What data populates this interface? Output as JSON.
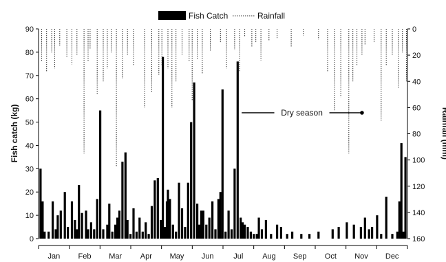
{
  "chart_data": {
    "type": "bar",
    "title": "",
    "xlabel": "",
    "ylabel": "Fish catch (kg)",
    "y2label": "Rainfall (mm)",
    "ylim": [
      0,
      90
    ],
    "y2lim": [
      160,
      0
    ],
    "y2_inverted": true,
    "legend": {
      "placement": "top-center",
      "entries": [
        "Fish Catch",
        "Rainfall"
      ]
    },
    "grid": false,
    "yticks": [
      0,
      10,
      20,
      30,
      40,
      50,
      60,
      70,
      80,
      90
    ],
    "y2ticks": [
      0,
      20,
      40,
      60,
      80,
      100,
      120,
      140,
      160
    ],
    "categories": [
      "Jan",
      "Feb",
      "Mar",
      "Apr",
      "May",
      "Jun",
      "Jul",
      "Aug",
      "Sep",
      "Oct",
      "Nov",
      "Dec"
    ],
    "annotation": {
      "text": "Dry season",
      "start_day": 201,
      "end_day": 320,
      "level": 54
    },
    "series": [
      {
        "name": "Fish Catch",
        "style": "bar",
        "color": "#000000",
        "x": [
          2,
          4,
          6,
          10,
          14,
          17,
          19,
          22,
          26,
          29,
          33,
          36,
          38,
          40,
          43,
          47,
          49,
          52,
          55,
          58,
          61,
          64,
          68,
          70,
          73,
          76,
          78,
          80,
          83,
          86,
          88,
          91,
          94,
          97,
          100,
          103,
          106,
          109,
          112,
          115,
          118,
          121,
          123,
          125,
          127,
          128,
          130,
          133,
          136,
          139,
          142,
          145,
          148,
          151,
          154,
          157,
          159,
          161,
          163,
          166,
          169,
          172,
          175,
          178,
          180,
          182,
          185,
          188,
          191,
          194,
          197,
          200,
          202,
          204,
          207,
          210,
          213,
          216,
          218,
          221,
          225,
          230,
          236,
          240,
          246,
          251,
          260,
          268,
          277,
          291,
          297,
          305,
          312,
          319,
          323,
          327,
          330,
          335,
          339,
          344,
          350,
          355,
          357,
          359,
          361,
          363
        ],
        "values": [
          30,
          16,
          3,
          3,
          16,
          4,
          10,
          12,
          20,
          5,
          16,
          8,
          4,
          23,
          11,
          12,
          4,
          7,
          4,
          17,
          55,
          4,
          6,
          15,
          3,
          6,
          9,
          12,
          33,
          37,
          8,
          2,
          13,
          3,
          9,
          3,
          7,
          2,
          14,
          25,
          26,
          8,
          78,
          5,
          16,
          21,
          17,
          6,
          3,
          24,
          13,
          5,
          24,
          50,
          67,
          15,
          6,
          12,
          12,
          6,
          9,
          16,
          4,
          17,
          20,
          64,
          3,
          12,
          4,
          30,
          76,
          9,
          7,
          6,
          5,
          3,
          2,
          2,
          9,
          4,
          8,
          2,
          6,
          5,
          2,
          3,
          2,
          2,
          3,
          4,
          5,
          7,
          6,
          5,
          9,
          4,
          5,
          10,
          2,
          18,
          2,
          3,
          16,
          41,
          3,
          35
        ]
      },
      {
        "name": "Rainfall",
        "style": "dotted-drops",
        "color": "#333333",
        "x": [
          3,
          8,
          13,
          16,
          21,
          28,
          33,
          38,
          45,
          49,
          51,
          58,
          64,
          68,
          72,
          77,
          83,
          88,
          94,
          105,
          112,
          119,
          122,
          128,
          132,
          136,
          142,
          149,
          152,
          157,
          162,
          170,
          180,
          186,
          194,
          199,
          204,
          211,
          215,
          220,
          228,
          236,
          250,
          262,
          277,
          286,
          293,
          299,
          307,
          311,
          315,
          320,
          323,
          332,
          339,
          344,
          350,
          356,
          360,
          364
        ],
        "values": [
          25,
          33,
          18,
          30,
          13,
          22,
          27,
          20,
          95,
          25,
          15,
          50,
          40,
          30,
          18,
          105,
          38,
          20,
          28,
          60,
          48,
          35,
          28,
          30,
          60,
          40,
          20,
          25,
          55,
          23,
          34,
          17,
          10,
          30,
          16,
          33,
          6,
          14,
          10,
          24,
          9,
          7,
          14,
          5,
          8,
          33,
          62,
          52,
          95,
          40,
          28,
          20,
          12,
          10,
          70,
          28,
          20,
          45,
          18,
          40
        ]
      }
    ]
  }
}
